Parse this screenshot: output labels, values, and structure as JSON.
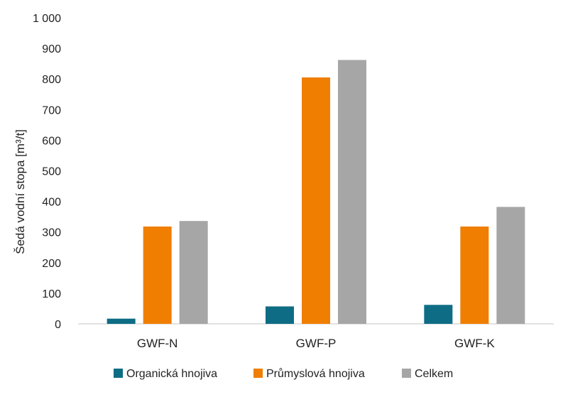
{
  "chart_data": {
    "type": "bar",
    "ylabel": "Šedá vodní stopa [m³/t]",
    "ylim": [
      0,
      1000
    ],
    "yticks": [
      0,
      100,
      200,
      300,
      400,
      500,
      600,
      700,
      800,
      900,
      1000
    ],
    "ytick_labels": [
      "0",
      "100",
      "200",
      "300",
      "400",
      "500",
      "600",
      "700",
      "800",
      "900",
      "1 000"
    ],
    "categories": [
      "GWF-N",
      "GWF-P",
      "GWF-K"
    ],
    "series": [
      {
        "name": "Organická hnojiva",
        "color": "#0e6d85",
        "values": [
          17,
          57,
          62
        ]
      },
      {
        "name": "Průmyslová hnojiva",
        "color": "#f07e00",
        "values": [
          318,
          805,
          318
        ]
      },
      {
        "name": "Celkem",
        "color": "#a6a6a6",
        "values": [
          336,
          862,
          382
        ]
      }
    ],
    "grid": false,
    "legend_position": "bottom"
  }
}
